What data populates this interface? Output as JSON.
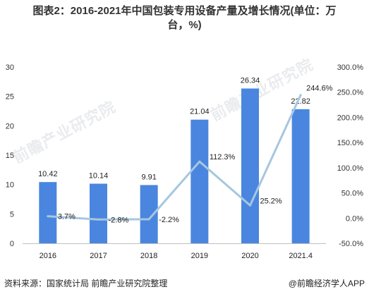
{
  "chart_data": {
    "type": "bar+line",
    "title_line1": "图表2：2016-2021年中国包装专用设备产量及增长情况(单位：万",
    "title_line2": "台，%)",
    "categories": [
      "2016",
      "2017",
      "2018",
      "2019",
      "2020",
      "2021.4"
    ],
    "series": [
      {
        "type": "bar",
        "axis": "left",
        "values": [
          10.42,
          10.14,
          9.91,
          21.04,
          26.34,
          22.82
        ],
        "labels": [
          "10.42",
          "10.14",
          "9.91",
          "21.04",
          "26.34",
          "22.82"
        ],
        "color": "#4a86df"
      },
      {
        "type": "line",
        "axis": "right",
        "values": [
          3.7,
          -2.8,
          -2.2,
          112.3,
          25.2,
          244.6
        ],
        "labels": [
          "3.7%",
          "-2.8%",
          "-2.2%",
          "112.3%",
          "25.2%",
          "244.6%"
        ],
        "color": "#a6c7df"
      }
    ],
    "y_left": {
      "min": 0,
      "max": 30,
      "ticks": [
        "0",
        "5",
        "10",
        "15",
        "20",
        "25",
        "30"
      ]
    },
    "y_right": {
      "min": -50,
      "max": 300,
      "ticks": [
        "-50.0%",
        "0.0%",
        "50.0%",
        "100.0%",
        "150.0%",
        "200.0%",
        "250.0%",
        "300.0%"
      ]
    },
    "grid": false
  },
  "footer": {
    "source": "资料来源：国家统计局 前瞻产业研究院整理",
    "brand": "@前瞻经济学人APP"
  },
  "watermark": "前瞻产业研究院"
}
